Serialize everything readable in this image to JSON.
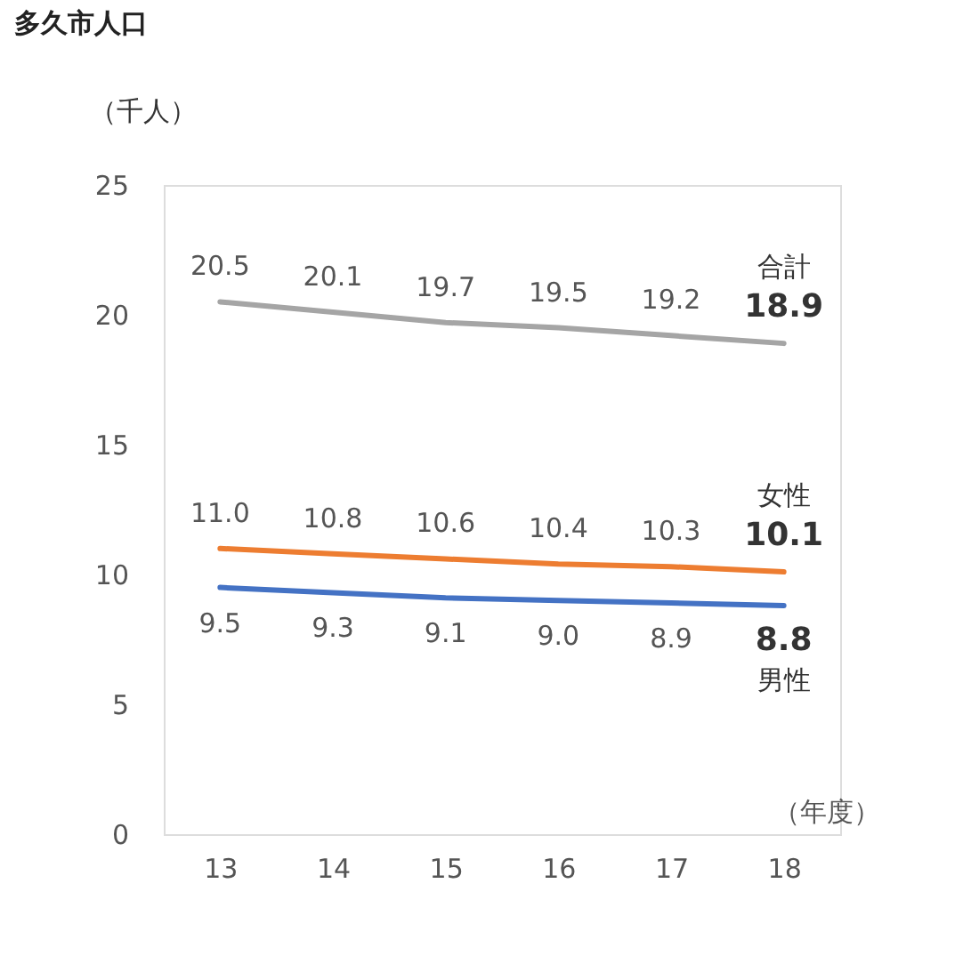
{
  "chart_data": {
    "type": "line",
    "title": "多久市人口",
    "ylabel": "（千人）",
    "xlabel": "（年度）",
    "categories": [
      "13",
      "14",
      "15",
      "16",
      "17",
      "18"
    ],
    "series": [
      {
        "name": "合計",
        "color": "#a5a5a5",
        "values": [
          20.5,
          20.1,
          19.7,
          19.5,
          19.2,
          18.9
        ],
        "value_labels": [
          "20.5",
          "20.1",
          "19.7",
          "19.5",
          "19.2",
          "18.9"
        ]
      },
      {
        "name": "女性",
        "color": "#ed7d31",
        "values": [
          11.0,
          10.8,
          10.6,
          10.4,
          10.3,
          10.1
        ],
        "value_labels": [
          "11.0",
          "10.8",
          "10.6",
          "10.4",
          "10.3",
          "10.1"
        ]
      },
      {
        "name": "男性",
        "color": "#4472c4",
        "values": [
          9.5,
          9.3,
          9.1,
          9.0,
          8.9,
          8.8
        ],
        "value_labels": [
          "9.5",
          "9.3",
          "9.1",
          "9.0",
          "8.9",
          "8.8"
        ]
      }
    ],
    "ylim": [
      0,
      25
    ],
    "yticks": [
      0,
      5,
      10,
      15,
      20,
      25
    ],
    "grid": false,
    "legend": false,
    "marker": "none",
    "line_style": "solid"
  }
}
